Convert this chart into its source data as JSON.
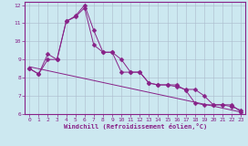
{
  "xlabel": "Windchill (Refroidissement éolien,°C)",
  "bg_color": "#cce8f0",
  "line_color": "#882288",
  "grid_color": "#aabbcc",
  "xlim": [
    -0.5,
    23.5
  ],
  "ylim": [
    6,
    12.2
  ],
  "xticks": [
    0,
    1,
    2,
    3,
    4,
    5,
    6,
    7,
    8,
    9,
    10,
    11,
    12,
    13,
    14,
    15,
    16,
    17,
    18,
    19,
    20,
    21,
    22,
    23
  ],
  "yticks": [
    6,
    7,
    8,
    9,
    10,
    11,
    12
  ],
  "series1_x": [
    0,
    1,
    2,
    3,
    4,
    5,
    6,
    7,
    8,
    9,
    10,
    11,
    12,
    13,
    14,
    15,
    16,
    17,
    18,
    19,
    20,
    21,
    22,
    23
  ],
  "series1_y": [
    8.5,
    8.2,
    9.3,
    9.0,
    11.1,
    11.35,
    11.85,
    9.8,
    9.4,
    9.4,
    8.3,
    8.3,
    8.3,
    7.7,
    7.6,
    7.6,
    7.6,
    7.3,
    6.6,
    6.5,
    6.5,
    6.5,
    6.5,
    6.1
  ],
  "series2_x": [
    0,
    1,
    2,
    3,
    4,
    5,
    6,
    7,
    8,
    9,
    10,
    11,
    12,
    13,
    14,
    15,
    16,
    17,
    18,
    19,
    20,
    21,
    22,
    23
  ],
  "series2_y": [
    8.5,
    8.2,
    9.0,
    9.0,
    11.1,
    11.4,
    12.0,
    10.6,
    9.4,
    9.4,
    9.0,
    8.3,
    8.3,
    7.7,
    7.6,
    7.6,
    7.5,
    7.35,
    7.35,
    7.0,
    6.5,
    6.5,
    6.4,
    6.2
  ],
  "series3_x": [
    0,
    23
  ],
  "series3_y": [
    8.6,
    6.1
  ],
  "markersize": 2.5
}
